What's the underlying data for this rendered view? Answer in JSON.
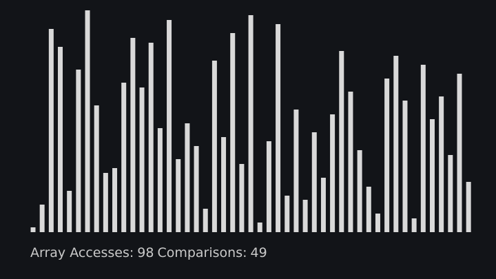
{
  "bars": [
    7,
    40,
    295,
    269,
    60,
    236,
    322,
    184,
    86,
    93,
    217,
    282,
    210,
    275,
    151,
    308,
    106,
    158,
    125,
    34,
    249,
    138,
    289,
    99,
    315,
    14,
    132,
    302,
    53,
    178,
    47,
    145,
    79,
    171,
    263,
    204,
    119,
    66,
    27,
    223,
    256,
    191,
    20,
    243,
    164,
    197,
    112,
    230,
    73
  ],
  "status": {
    "accesses_label": "Array Accesses:",
    "accesses": 98,
    "comparisons_label": "Comparisons:",
    "comparisons": 49
  }
}
